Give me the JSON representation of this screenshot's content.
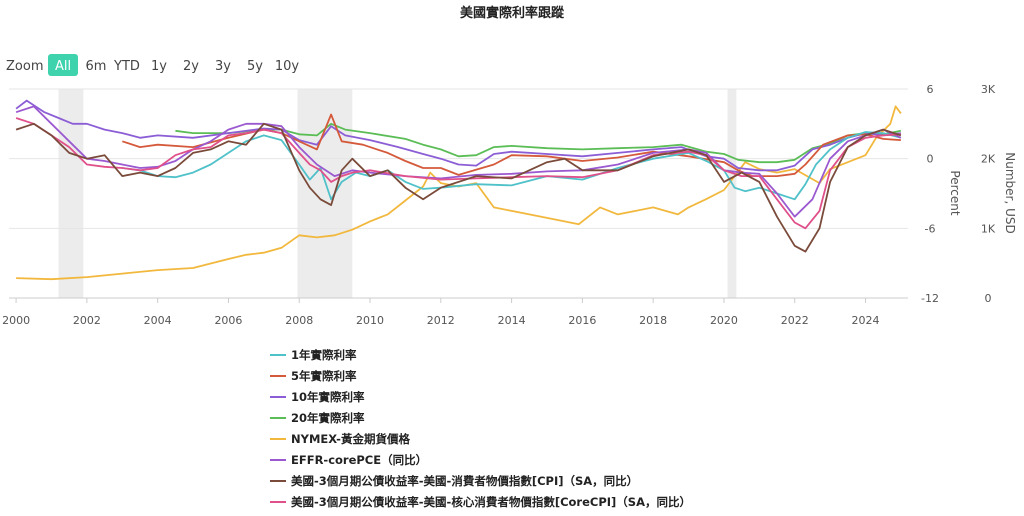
{
  "chart_data": {
    "type": "line",
    "title": "美國實際利率跟蹤",
    "zoom": {
      "label": "Zoom",
      "buttons": [
        "All",
        "6m",
        "YTD",
        "1y",
        "2y",
        "3y",
        "5y",
        "10y"
      ],
      "selected": "All"
    },
    "x_axis": {
      "range": [
        1999.8,
        2025.2
      ],
      "ticks": [
        2000,
        2002,
        2004,
        2006,
        2008,
        2010,
        2012,
        2014,
        2016,
        2018,
        2020,
        2022,
        2024
      ],
      "tick_labels": [
        "2000",
        "2002",
        "2004",
        "2006",
        "2008",
        "2010",
        "2012",
        "2014",
        "2016",
        "2018",
        "2020",
        "2022",
        "2024"
      ]
    },
    "y_left": {
      "label": "Percent",
      "range": [
        -12,
        6
      ],
      "ticks": [
        6,
        0,
        -6,
        -12
      ],
      "tick_labels": [
        "6",
        "0",
        "-6",
        "-12"
      ]
    },
    "y_right": {
      "label": "Number, USD",
      "range": [
        0,
        3000
      ],
      "ticks": [
        3000,
        2000,
        1000,
        0
      ],
      "tick_labels": [
        "3K",
        "2K",
        "1K",
        "0"
      ]
    },
    "recession_bands": [
      [
        2001.2,
        2001.9
      ],
      [
        2007.95,
        2009.5
      ],
      [
        2020.1,
        2020.35
      ]
    ],
    "grid": "horizontal",
    "legend_position": "bottom",
    "series": [
      {
        "name": "1年實際利率",
        "color": "#4fc1c9",
        "axis": "left",
        "x": [
          2003.0,
          2003.5,
          2004.0,
          2004.5,
          2005.0,
          2005.5,
          2006.0,
          2006.5,
          2007.0,
          2007.5,
          2008.0,
          2008.3,
          2008.6,
          2008.9,
          2009.2,
          2009.6,
          2010.0,
          2010.5,
          2011.0,
          2011.5,
          2012.0,
          2013.0,
          2014.0,
          2015.0,
          2016.0,
          2017.0,
          2018.0,
          2019.0,
          2019.5,
          2020.0,
          2020.3,
          2020.6,
          2021.0,
          2021.5,
          2022.0,
          2022.3,
          2022.6,
          2023.0,
          2023.5,
          2024.0,
          2024.5,
          2025.0
        ],
        "y": [
          -0.8,
          -1.0,
          -1.5,
          -1.6,
          -1.2,
          -0.5,
          0.5,
          1.5,
          2.0,
          1.6,
          -0.5,
          -1.8,
          -0.8,
          -3.5,
          -2.0,
          -1.2,
          -1.5,
          -1.0,
          -2.0,
          -2.6,
          -2.5,
          -2.2,
          -2.3,
          -1.5,
          -1.8,
          -0.8,
          0.0,
          0.5,
          -0.2,
          -1.0,
          -2.5,
          -2.8,
          -2.5,
          -3.0,
          -3.5,
          -2.2,
          -0.5,
          0.8,
          1.8,
          2.3,
          2.2,
          1.8
        ]
      },
      {
        "name": "5年實際利率",
        "color": "#d45a3b",
        "axis": "left",
        "x": [
          2003.0,
          2003.5,
          2004.0,
          2005.0,
          2006.0,
          2007.0,
          2007.5,
          2008.0,
          2008.5,
          2008.9,
          2009.2,
          2009.8,
          2010.5,
          2011.0,
          2011.5,
          2012.0,
          2012.5,
          2013.5,
          2014.0,
          2015.0,
          2016.0,
          2017.0,
          2018.0,
          2019.0,
          2020.0,
          2020.4,
          2020.8,
          2021.5,
          2022.0,
          2022.3,
          2022.8,
          2023.5,
          2024.0,
          2024.5,
          2025.0
        ],
        "y": [
          1.5,
          1.0,
          1.2,
          1.0,
          1.8,
          2.5,
          2.2,
          1.5,
          0.8,
          3.8,
          1.5,
          1.2,
          0.5,
          -0.2,
          -0.8,
          -0.8,
          -1.4,
          -0.5,
          0.3,
          0.2,
          -0.2,
          0.1,
          0.6,
          0.2,
          -0.3,
          -1.0,
          -1.5,
          -1.5,
          -1.3,
          -0.5,
          1.2,
          2.0,
          2.1,
          1.7,
          1.6
        ]
      },
      {
        "name": "10年實際利率",
        "color": "#8c5ed6",
        "axis": "left",
        "x": [
          2000.0,
          2000.3,
          2000.8,
          2001.2,
          2001.6,
          2002.0,
          2002.5,
          2003.0,
          2003.5,
          2004.0,
          2005.0,
          2006.0,
          2007.0,
          2007.5,
          2008.0,
          2008.5,
          2008.9,
          2009.3,
          2010.0,
          2010.8,
          2011.5,
          2012.0,
          2012.5,
          2013.0,
          2013.5,
          2014.0,
          2015.0,
          2016.0,
          2017.0,
          2018.0,
          2018.8,
          2019.5,
          2020.0,
          2020.4,
          2021.0,
          2021.5,
          2022.0,
          2022.5,
          2023.0,
          2023.5,
          2024.0,
          2024.5,
          2025.0
        ],
        "y": [
          4.3,
          5.0,
          4.0,
          3.5,
          3.0,
          3.0,
          2.5,
          2.2,
          1.8,
          2.0,
          1.8,
          2.2,
          2.6,
          2.5,
          1.6,
          1.2,
          2.8,
          2.0,
          1.6,
          1.0,
          0.4,
          0.0,
          -0.5,
          -0.6,
          0.4,
          0.6,
          0.4,
          0.2,
          0.5,
          0.8,
          1.0,
          0.2,
          0.0,
          -0.8,
          -1.0,
          -1.0,
          -0.6,
          0.8,
          1.2,
          1.8,
          2.2,
          2.0,
          2.2
        ]
      },
      {
        "name": "20年實際利率",
        "color": "#5bbd56",
        "axis": "left",
        "x": [
          2004.5,
          2005.0,
          2006.0,
          2007.0,
          2007.5,
          2008.0,
          2008.5,
          2008.9,
          2009.3,
          2010.0,
          2011.0,
          2011.5,
          2012.0,
          2012.5,
          2013.0,
          2013.5,
          2014.0,
          2015.0,
          2016.0,
          2017.0,
          2018.0,
          2018.8,
          2019.5,
          2020.0,
          2020.4,
          2021.0,
          2021.5,
          2022.0,
          2022.5,
          2023.0,
          2023.5,
          2024.0,
          2024.5,
          2025.0
        ],
        "y": [
          2.4,
          2.2,
          2.2,
          2.5,
          2.5,
          2.1,
          2.0,
          3.0,
          2.5,
          2.2,
          1.7,
          1.2,
          0.8,
          0.2,
          0.3,
          1.0,
          1.1,
          0.9,
          0.8,
          0.9,
          1.0,
          1.2,
          0.6,
          0.4,
          -0.1,
          -0.3,
          -0.3,
          -0.1,
          0.9,
          1.3,
          2.0,
          2.2,
          2.1,
          2.4
        ]
      },
      {
        "name": "NYMEX-黃金期貨價格",
        "color": "#f2b83d",
        "axis": "right",
        "x": [
          2000.0,
          2001.0,
          2002.0,
          2003.0,
          2004.0,
          2005.0,
          2006.0,
          2006.5,
          2007.0,
          2007.5,
          2008.0,
          2008.5,
          2009.0,
          2009.5,
          2010.0,
          2010.5,
          2011.0,
          2011.5,
          2011.7,
          2012.0,
          2012.5,
          2013.0,
          2013.5,
          2014.0,
          2015.0,
          2015.9,
          2016.5,
          2017.0,
          2018.0,
          2018.7,
          2019.0,
          2019.5,
          2020.0,
          2020.6,
          2021.0,
          2021.5,
          2022.0,
          2022.7,
          2023.0,
          2023.5,
          2024.0,
          2024.3,
          2024.7,
          2024.85,
          2025.0
        ],
        "y": [
          285,
          270,
          300,
          350,
          400,
          430,
          560,
          620,
          650,
          720,
          900,
          870,
          900,
          980,
          1100,
          1200,
          1400,
          1600,
          1800,
          1650,
          1600,
          1650,
          1300,
          1250,
          1150,
          1060,
          1300,
          1200,
          1300,
          1200,
          1300,
          1420,
          1550,
          1950,
          1850,
          1800,
          1850,
          1650,
          1850,
          1950,
          2050,
          2300,
          2500,
          2750,
          2650
        ]
      },
      {
        "name": "EFFR-corePCE（同比）",
        "color": "#9b59d0",
        "axis": "left",
        "x": [
          2000.0,
          2000.5,
          2001.0,
          2001.5,
          2002.0,
          2002.5,
          2003.0,
          2003.5,
          2004.0,
          2004.5,
          2005.0,
          2005.5,
          2006.0,
          2006.5,
          2007.0,
          2007.5,
          2008.0,
          2008.5,
          2009.0,
          2009.5,
          2010.0,
          2011.0,
          2012.0,
          2013.0,
          2014.0,
          2015.0,
          2016.0,
          2017.0,
          2018.0,
          2019.0,
          2019.5,
          2020.0,
          2020.5,
          2021.0,
          2021.5,
          2022.0,
          2022.5,
          2023.0,
          2023.5,
          2024.0,
          2024.5,
          2025.0
        ],
        "y": [
          4.0,
          4.5,
          3.0,
          1.5,
          0.0,
          -0.2,
          -0.5,
          -0.8,
          -0.7,
          -0.2,
          0.8,
          1.5,
          2.5,
          3.0,
          3.0,
          2.8,
          1.0,
          -0.5,
          -1.5,
          -1.0,
          -1.2,
          -1.5,
          -1.7,
          -1.4,
          -1.3,
          -1.1,
          -1.0,
          -0.5,
          0.5,
          0.8,
          0.5,
          -1.0,
          -1.2,
          -1.3,
          -3.0,
          -5.0,
          -3.5,
          0.0,
          1.5,
          2.0,
          2.5,
          1.8
        ]
      },
      {
        "name": "美國-3個月期公債收益率-美國-消費者物價指數[CPI]（SA，同比）",
        "color": "#7a4b3a",
        "axis": "left",
        "x": [
          2000.0,
          2000.5,
          2001.0,
          2001.5,
          2002.0,
          2002.5,
          2003.0,
          2003.5,
          2004.0,
          2004.5,
          2005.0,
          2005.5,
          2006.0,
          2006.5,
          2007.0,
          2007.5,
          2008.0,
          2008.3,
          2008.6,
          2008.9,
          2009.2,
          2009.5,
          2010.0,
          2010.5,
          2011.0,
          2011.5,
          2012.0,
          2013.0,
          2014.0,
          2015.0,
          2015.5,
          2016.0,
          2017.0,
          2018.0,
          2019.0,
          2019.5,
          2020.0,
          2020.5,
          2021.0,
          2021.5,
          2022.0,
          2022.3,
          2022.7,
          2023.0,
          2023.5,
          2024.0,
          2024.5,
          2025.0
        ],
        "y": [
          2.5,
          3.0,
          2.0,
          0.5,
          0.0,
          0.3,
          -1.5,
          -1.2,
          -1.5,
          -0.8,
          0.5,
          0.8,
          1.5,
          1.2,
          3.0,
          2.5,
          -1.0,
          -2.5,
          -3.5,
          -4.0,
          -1.0,
          0.0,
          -1.5,
          -1.0,
          -2.5,
          -3.5,
          -2.5,
          -1.5,
          -1.7,
          -0.3,
          0.0,
          -1.0,
          -1.0,
          0.2,
          0.8,
          0.3,
          -2.0,
          -1.2,
          -2.0,
          -5.0,
          -7.5,
          -8.0,
          -6.0,
          -2.0,
          1.0,
          2.0,
          2.5,
          2.0
        ]
      },
      {
        "name": "美國-3個月期公債收益率-美國-核心消費者物價指數[CoreCPI]（SA，同比）",
        "color": "#e0508a",
        "axis": "left",
        "x": [
          2000.0,
          2000.5,
          2001.0,
          2001.5,
          2002.0,
          2002.5,
          2003.0,
          2003.5,
          2004.0,
          2004.5,
          2005.0,
          2005.5,
          2006.0,
          2006.5,
          2007.0,
          2007.5,
          2008.0,
          2008.3,
          2008.6,
          2008.9,
          2009.2,
          2009.5,
          2010.0,
          2011.0,
          2012.0,
          2013.0,
          2014.0,
          2015.0,
          2016.0,
          2017.0,
          2018.0,
          2019.0,
          2019.5,
          2020.0,
          2020.5,
          2021.0,
          2021.5,
          2022.0,
          2022.3,
          2022.7,
          2023.0,
          2023.5,
          2024.0,
          2024.5,
          2025.0
        ],
        "y": [
          3.5,
          3.0,
          2.0,
          1.0,
          -0.5,
          -0.7,
          -0.8,
          -1.0,
          -0.8,
          0.3,
          0.8,
          1.0,
          2.0,
          2.2,
          2.5,
          2.2,
          0.5,
          -0.5,
          -1.0,
          -2.0,
          -1.5,
          -1.2,
          -1.0,
          -1.5,
          -1.8,
          -1.7,
          -1.6,
          -1.5,
          -1.6,
          -1.0,
          0.3,
          0.6,
          0.3,
          -1.0,
          -1.5,
          -1.5,
          -3.5,
          -5.5,
          -6.0,
          -4.5,
          -1.0,
          1.0,
          1.8,
          2.0,
          2.1
        ]
      }
    ]
  }
}
